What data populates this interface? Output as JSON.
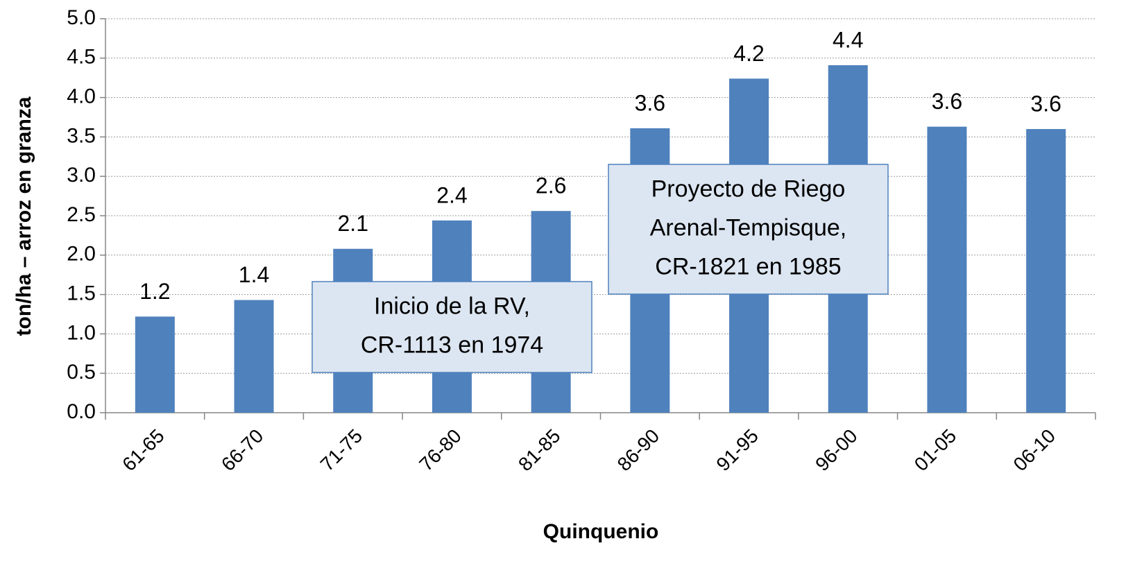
{
  "chart_data": {
    "type": "bar",
    "x_label": "Quinquenio",
    "y_label": "ton/ha – arroz en granza",
    "categories": [
      "61-65",
      "66-70",
      "71-75",
      "76-80",
      "81-85",
      "86-90",
      "91-95",
      "96-00",
      "01-05",
      "06-10"
    ],
    "values": [
      1.22,
      1.43,
      2.08,
      2.44,
      2.56,
      3.61,
      4.24,
      4.41,
      3.63,
      3.6
    ],
    "value_labels": [
      "1.2",
      "1.4",
      "2.1",
      "2.4",
      "2.6",
      "3.6",
      "4.2",
      "4.4",
      "3.6",
      "3.6"
    ],
    "color": "#4f81bd",
    "ylim": [
      0,
      5
    ],
    "yticks": [
      {
        "value": 0,
        "label": "0.0"
      },
      0.5,
      {
        "value": 1,
        "label": "1.0"
      },
      1.5,
      {
        "value": 2,
        "label": "2.0"
      },
      2.5,
      {
        "value": 3,
        "label": "3.0"
      },
      3.5,
      {
        "value": 4,
        "label": "4.0"
      },
      4.5,
      {
        "value": 5,
        "label": "5.0"
      }
    ],
    "grid": true,
    "annotations": [
      {
        "lines": [
          "Inicio de la RV,",
          "CR-1113 en 1974"
        ]
      },
      {
        "lines": [
          "Proyecto de Riego",
          "Arenal-Tempisque,",
          "CR-1821 en 1985"
        ]
      }
    ]
  }
}
